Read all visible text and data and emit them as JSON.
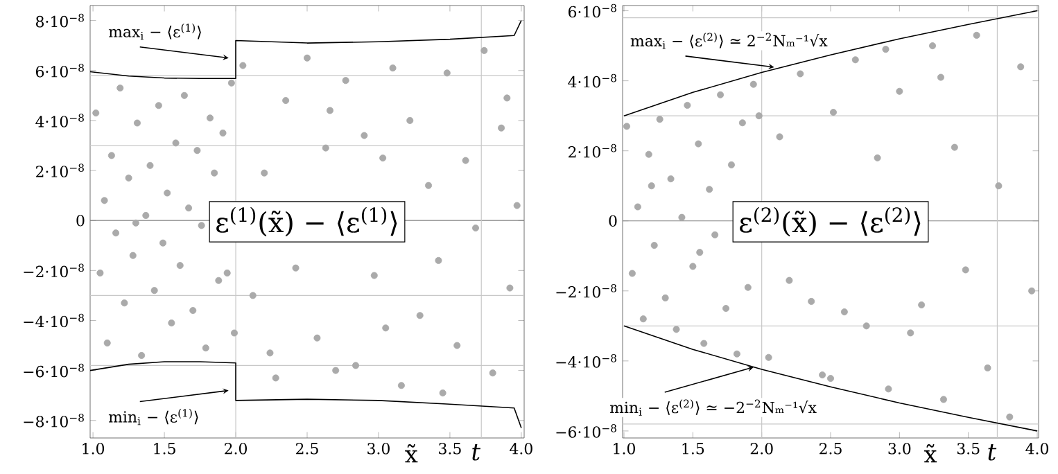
{
  "chart_data": [
    {
      "type": "scatter",
      "xlabel": "x̃",
      "marker": "circle",
      "xlim": [
        0.98,
        4.02
      ],
      "ylim": [
        -8.7e-08,
        8.6e-08
      ],
      "xticks": [
        {
          "value": 1,
          "label": "1.0"
        },
        {
          "value": 1.5,
          "label": "1.5"
        },
        {
          "value": 2,
          "label": "2.0"
        },
        {
          "value": 2.5,
          "label": "2.5"
        },
        {
          "value": 3,
          "label": "3.0"
        },
        {
          "value": 3.5,
          "label": "3.5"
        },
        {
          "value": 4,
          "label": "4.0"
        }
      ],
      "yticks": [
        {
          "value": -8e-08,
          "label": "−8·10$^{−8}$"
        },
        {
          "value": -6e-08,
          "label": "−6·10$^{−8}$"
        },
        {
          "value": -4e-08,
          "label": "−4·10$^{−8}$"
        },
        {
          "value": -2e-08,
          "label": "−2·10$^{−8}$"
        },
        0,
        {
          "value": 2e-08,
          "label": "2·10$^{−8}$"
        },
        {
          "value": 4e-08,
          "label": "4·10$^{−8}$"
        },
        {
          "value": 6e-08,
          "label": "6·10$^{−8}$"
        },
        {
          "value": 8e-08,
          "label": "8·10$^{−8}$"
        }
      ],
      "ref_lines": [
        {
          "axis": "y",
          "value": 5.8e-08,
          "color": "#c8c8c8"
        },
        {
          "axis": "y",
          "value": 3e-08,
          "color": "#c8c8c8"
        },
        {
          "axis": "y",
          "value": 0,
          "color": "#808080"
        },
        {
          "axis": "y",
          "value": -3e-08,
          "color": "#c8c8c8"
        },
        {
          "axis": "y",
          "value": -5.8e-08,
          "color": "#c8c8c8"
        },
        {
          "axis": "x",
          "value": 2,
          "color": "#c8c8c8"
        },
        {
          "axis": "x",
          "value": 3.72,
          "label": "t",
          "color": "#c8c8c8"
        }
      ],
      "series": [
        {
          "color": "#aaaaaa",
          "x": [
            1.02,
            1.05,
            1.08,
            1.1,
            1.13,
            1.16,
            1.19,
            1.22,
            1.25,
            1.28,
            1.31,
            1.34,
            1.37,
            1.4,
            1.43,
            1.46,
            1.49,
            1.52,
            1.55,
            1.58,
            1.61,
            1.64,
            1.67,
            1.7,
            1.73,
            1.76,
            1.79,
            1.82,
            1.85,
            1.88,
            1.91,
            1.94,
            1.97,
            1.99,
            1.3,
            2.05,
            2.12,
            2.2,
            2.28,
            2.35,
            2.42,
            2.5,
            2.57,
            2.63,
            2.7,
            2.77,
            2.84,
            2.9,
            2.97,
            3.03,
            3.1,
            3.16,
            3.22,
            3.29,
            3.35,
            3.42,
            3.48,
            3.55,
            3.61,
            3.68,
            3.74,
            3.8,
            3.86,
            3.92,
            3.97,
            2.24,
            2.66,
            3.05,
            3.45,
            3.9
          ],
          "values": [
            4.3e-08,
            -2.1e-08,
            8e-09,
            -4.9e-08,
            2.6e-08,
            -5e-09,
            5.3e-08,
            -3.3e-08,
            1.7e-08,
            -1.4e-08,
            3.9e-08,
            -5.4e-08,
            2e-09,
            2.2e-08,
            -2.8e-08,
            4.6e-08,
            -9e-09,
            1.1e-08,
            -4.1e-08,
            3.1e-08,
            -1.8e-08,
            5e-08,
            5e-09,
            -3.6e-08,
            2.8e-08,
            -2e-09,
            -5.1e-08,
            4.1e-08,
            1.9e-08,
            -2.4e-08,
            3.5e-08,
            -2.1e-08,
            5.5e-08,
            -4.5e-08,
            -1e-09,
            6.2e-08,
            -3e-08,
            1.9e-08,
            -6.3e-08,
            4.8e-08,
            -1.9e-08,
            6.5e-08,
            -4.7e-08,
            2.9e-08,
            -6e-08,
            5.6e-08,
            -5.8e-08,
            3.4e-08,
            -2.2e-08,
            2.5e-08,
            6.1e-08,
            -6.6e-08,
            4e-08,
            -3.8e-08,
            1.4e-08,
            -1.6e-08,
            5.9e-08,
            -5e-08,
            2.4e-08,
            -3e-09,
            6.8e-08,
            -6.1e-08,
            3.7e-08,
            -2.7e-08,
            6e-09,
            -5.3e-08,
            4.4e-08,
            -4.3e-08,
            -6.9e-08,
            4.9e-08
          ]
        },
        {
          "type": "line",
          "marker": "none",
          "color": "#000000",
          "x": [
            0.98,
            1.25,
            1.5,
            1.75,
            2.0,
            2.0,
            2.5,
            3.0,
            3.5,
            3.95,
            4.0
          ],
          "values": [
            5.95e-08,
            5.78e-08,
            5.7e-08,
            5.68e-08,
            5.68e-08,
            7.2e-08,
            7.1e-08,
            7.15e-08,
            7.25e-08,
            7.4e-08,
            8e-08
          ]
        },
        {
          "type": "line",
          "marker": "none",
          "color": "#000000",
          "x": [
            0.98,
            1.25,
            1.5,
            1.75,
            2.0,
            2.0,
            2.5,
            3.0,
            3.5,
            3.95,
            4.0
          ],
          "values": [
            -6e-08,
            -5.75e-08,
            -5.65e-08,
            -5.65e-08,
            -5.7e-08,
            -7.2e-08,
            -7.15e-08,
            -7.2e-08,
            -7.35e-08,
            -7.5e-08,
            -8.3e-08
          ]
        }
      ],
      "annotations": [
        "ε$^{(1)}$(x̃) − ⟨ε$^{(1)}$⟩",
        {
          "text": "max$_{i}$ − ⟨ε$^{(1)}$⟩",
          "x": 1.95,
          "y": 6.5e-08
        },
        {
          "text": "min$_{i}$ − ⟨ε$^{(1)}$⟩",
          "x": 1.95,
          "y": -6.8e-08
        }
      ]
    },
    {
      "type": "scatter",
      "xlabel": "x̃",
      "marker": "circle",
      "xlim": [
        0.99,
        4.01
      ],
      "ylim": [
        -6.2e-08,
        6.15e-08
      ],
      "xticks": [
        {
          "value": 1,
          "label": "1.0"
        },
        {
          "value": 1.5,
          "label": "1.5"
        },
        {
          "value": 2,
          "label": "2.0"
        },
        {
          "value": 2.5,
          "label": "2.5"
        },
        {
          "value": 3,
          "label": "3.0"
        },
        {
          "value": 3.5,
          "label": "3.5"
        },
        {
          "value": 4,
          "label": "4.0"
        }
      ],
      "yticks": [
        {
          "value": -6e-08,
          "label": "−6·10$^{−8}$"
        },
        {
          "value": -4e-08,
          "label": "−4·10$^{−8}$"
        },
        {
          "value": -2e-08,
          "label": "−2·10$^{−8}$"
        },
        0,
        {
          "value": 2e-08,
          "label": "2·10$^{−8}$"
        },
        {
          "value": 4e-08,
          "label": "4·10$^{−8}$"
        },
        {
          "value": 6e-08,
          "label": "6·10$^{−8}$"
        }
      ],
      "ref_lines": [
        {
          "axis": "y",
          "value": 5.8e-08,
          "color": "#c8c8c8"
        },
        {
          "axis": "y",
          "value": 3e-08,
          "color": "#c8c8c8"
        },
        {
          "axis": "y",
          "value": 0,
          "color": "#808080"
        },
        {
          "axis": "y",
          "value": -3e-08,
          "color": "#c8c8c8"
        },
        {
          "axis": "y",
          "value": -5.8e-08,
          "color": "#c8c8c8"
        },
        {
          "axis": "x",
          "value": 2,
          "color": "#c8c8c8"
        },
        {
          "axis": "x",
          "value": 3.71,
          "label": "t",
          "color": "#c8c8c8"
        }
      ],
      "series": [
        {
          "color": "#aaaaaa",
          "x": [
            1.02,
            1.06,
            1.1,
            1.14,
            1.18,
            1.22,
            1.26,
            1.3,
            1.34,
            1.38,
            1.42,
            1.46,
            1.5,
            1.54,
            1.58,
            1.62,
            1.66,
            1.7,
            1.74,
            1.78,
            1.82,
            1.86,
            1.9,
            1.94,
            1.98,
            2.05,
            2.13,
            2.2,
            2.28,
            2.36,
            2.44,
            2.52,
            2.6,
            2.68,
            2.76,
            2.84,
            2.92,
            3.0,
            3.08,
            3.16,
            3.24,
            3.32,
            3.4,
            3.48,
            3.56,
            3.64,
            3.72,
            3.8,
            3.88,
            3.96,
            2.5,
            3.3,
            1.2,
            1.55,
            2.9
          ],
          "values": [
            2.7e-08,
            -1.5e-08,
            4e-09,
            -2.8e-08,
            1.9e-08,
            -7e-09,
            2.9e-08,
            -2.2e-08,
            1.2e-08,
            -3.1e-08,
            1e-09,
            3.3e-08,
            -1.3e-08,
            2.2e-08,
            -3.5e-08,
            9e-09,
            -4e-09,
            3.6e-08,
            -2.5e-08,
            1.6e-08,
            -3.8e-08,
            2.8e-08,
            -1.9e-08,
            3.9e-08,
            3e-08,
            -3.9e-08,
            2.4e-08,
            -1.7e-08,
            4.2e-08,
            -2.3e-08,
            -4.4e-08,
            3.1e-08,
            -2.6e-08,
            4.6e-08,
            -3e-08,
            1.8e-08,
            -4.8e-08,
            3.7e-08,
            -3.2e-08,
            -2.4e-08,
            5e-08,
            -5.1e-08,
            2.1e-08,
            -1.4e-08,
            5.3e-08,
            -4.2e-08,
            1e-08,
            -5.6e-08,
            4.4e-08,
            -2e-08,
            -4.5e-08,
            4.1e-08,
            1e-08,
            -9e-09,
            4.9e-08
          ]
        },
        {
          "type": "line",
          "marker": "none",
          "color": "#000000",
          "x": [
            1.0,
            1.5,
            2.0,
            2.5,
            3.0,
            3.5,
            4.0
          ],
          "values": [
            3e-08,
            3.67e-08,
            4.24e-08,
            4.74e-08,
            5.2e-08,
            5.61e-08,
            6e-08
          ]
        },
        {
          "type": "line",
          "marker": "none",
          "color": "#000000",
          "x": [
            1.0,
            1.5,
            2.0,
            2.5,
            3.0,
            3.5,
            4.0
          ],
          "values": [
            -3e-08,
            -3.67e-08,
            -4.24e-08,
            -4.74e-08,
            -5.2e-08,
            -5.61e-08,
            -6e-08
          ]
        }
      ],
      "annotations": [
        "ε$^{(2)}$(x̃) − ⟨ε$^{(2)}$⟩",
        {
          "text": "max$_{i}$ − ⟨ε$^{(2)}$⟩ ≃ 2$^{−2}$Nₘ⁻¹√x",
          "x": 2.09,
          "y": 4.39e-08
        },
        {
          "text": "min$_{i}$ − ⟨ε$^{(2)}$⟩ ≃ −2$^{−2}$Nₘ⁻¹√x",
          "x": 1.94,
          "y": -4.18e-08
        }
      ]
    }
  ]
}
